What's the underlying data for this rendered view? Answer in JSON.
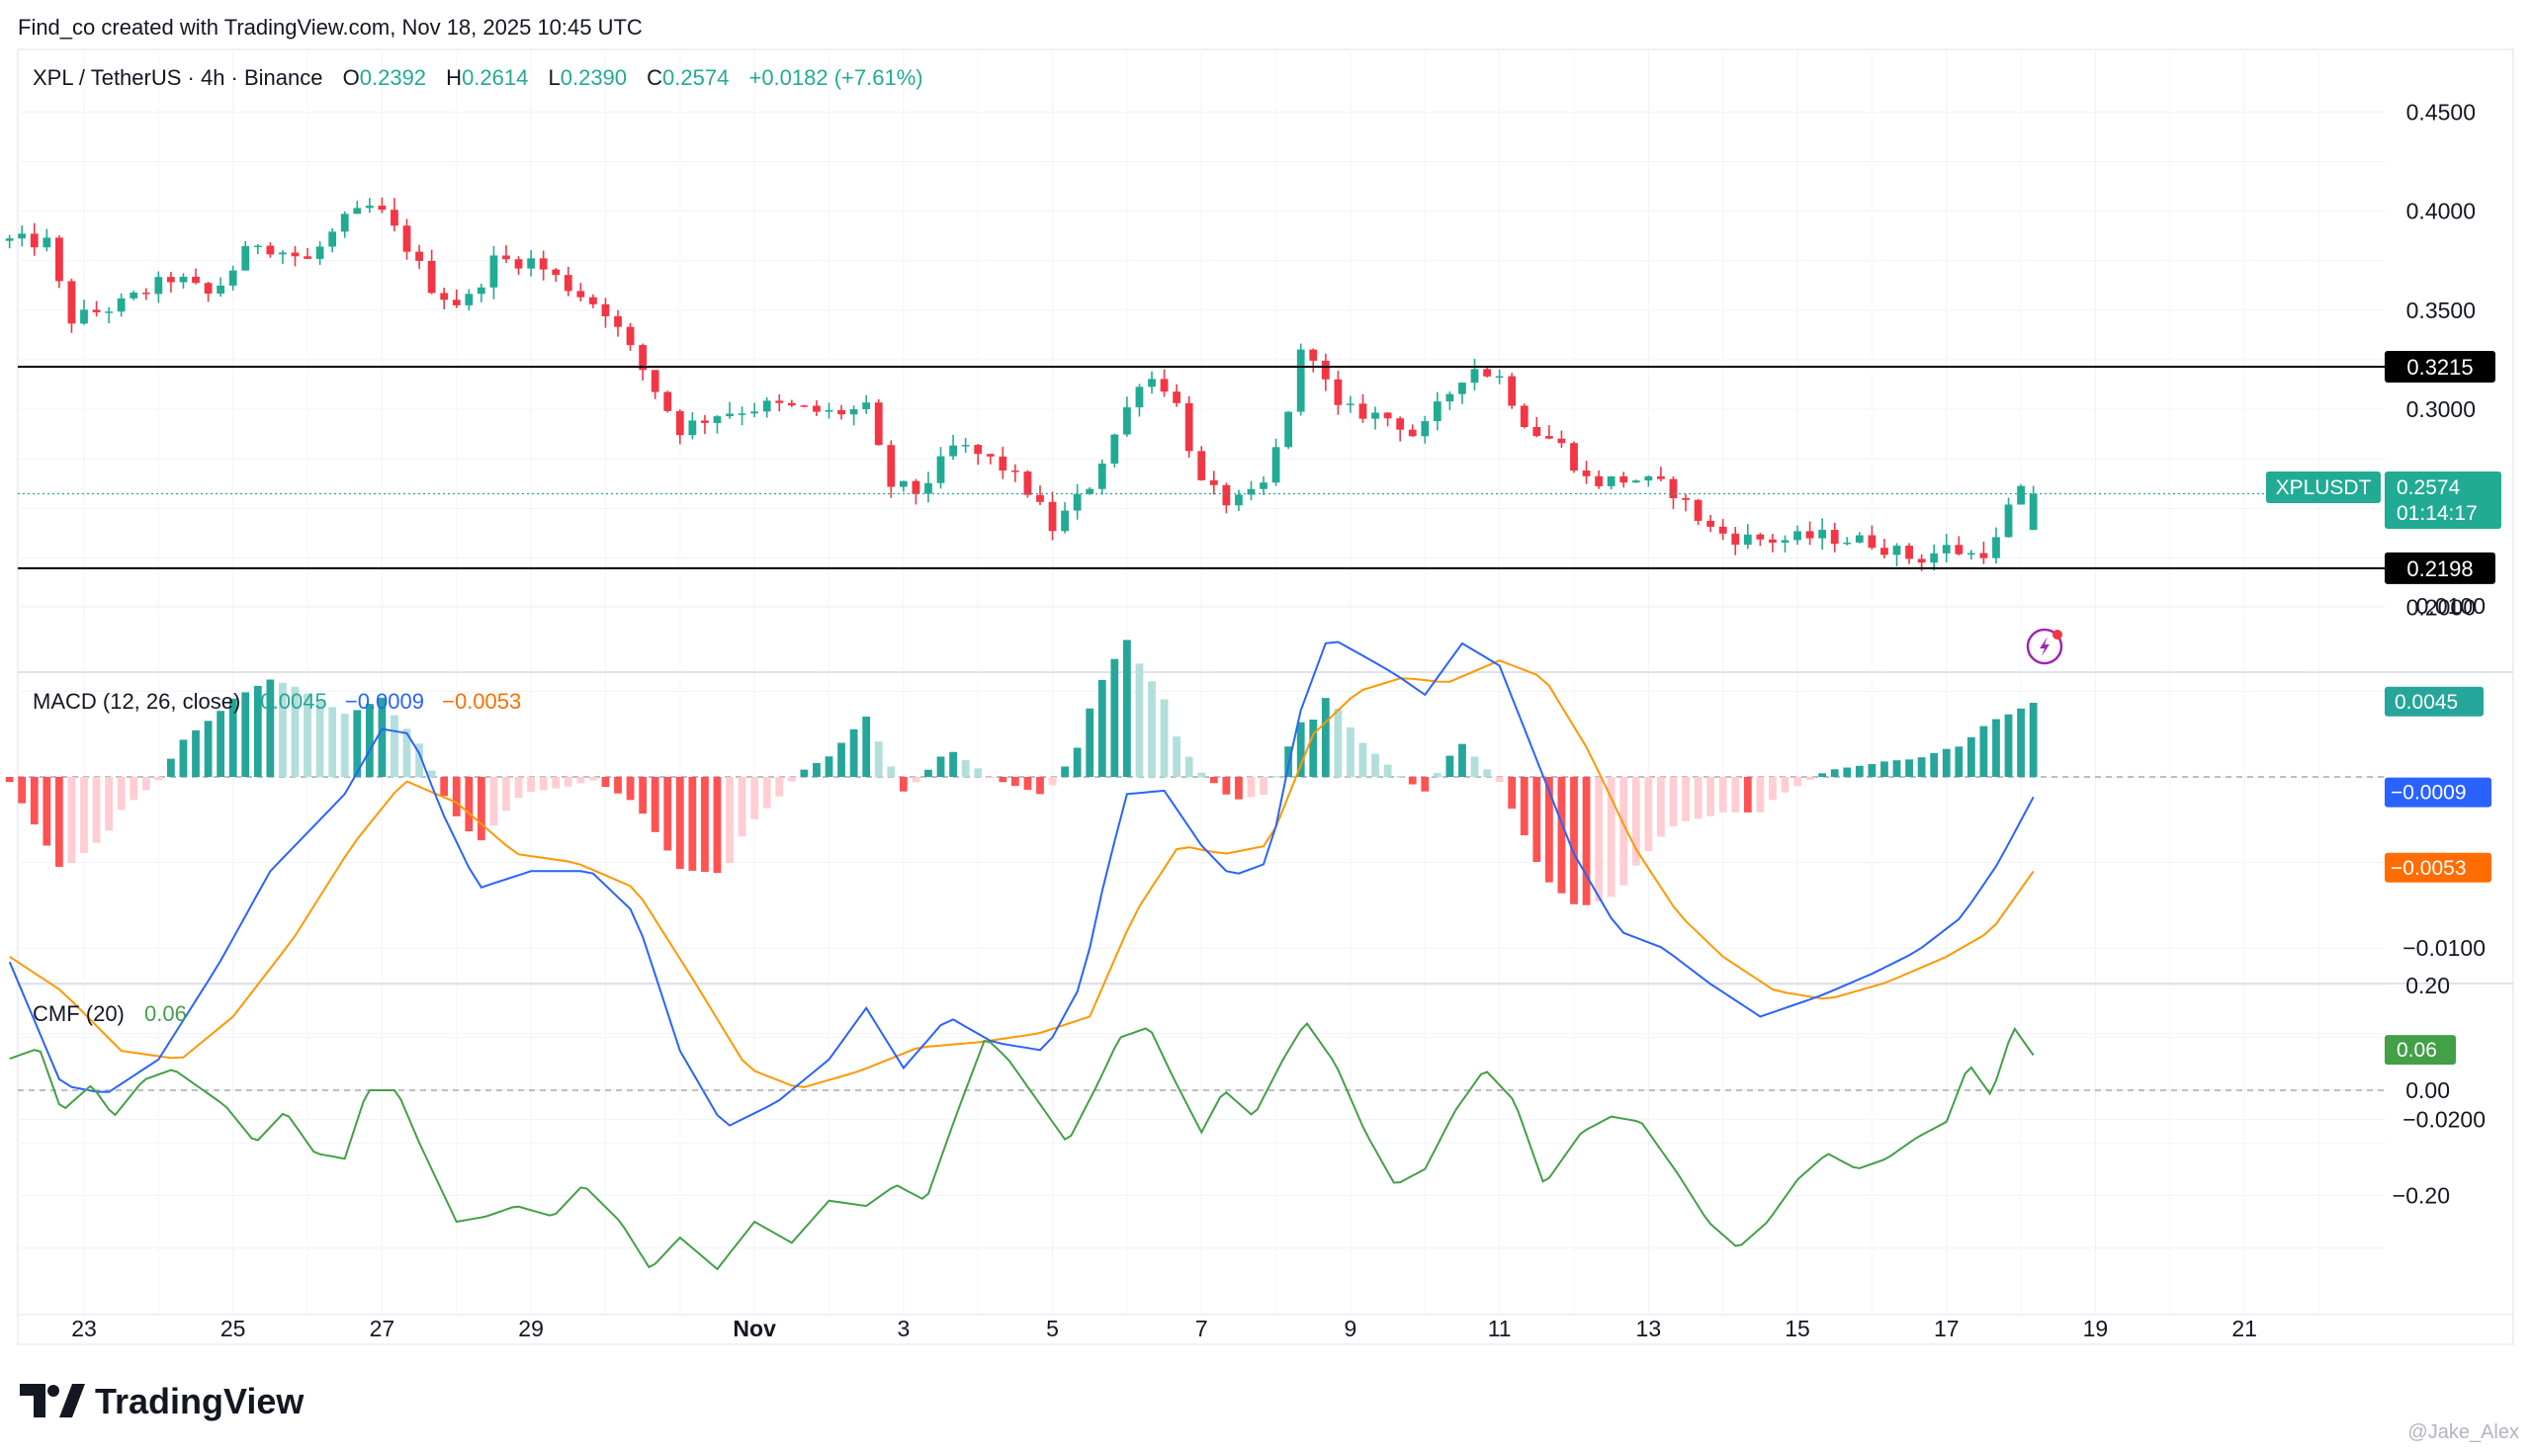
{
  "header": {
    "created_by": "Find_co created with TradingView.com, Nov 18, 2025 10:45 UTC"
  },
  "legend": {
    "symbol": "XPL / TetherUS · 4h · Binance",
    "o_label": "O",
    "o_value": "0.2392",
    "h_label": "H",
    "h_value": "0.2614",
    "l_label": "L",
    "l_value": "0.2390",
    "c_label": "C",
    "c_value": "0.2574",
    "change": "+0.0182 (+7.61%)"
  },
  "macd_legend": {
    "label": "MACD (12, 26, close)",
    "hist": "0.0045",
    "macd": "−0.0009",
    "signal": "−0.0053"
  },
  "cmf_legend": {
    "label": "CMF (20)",
    "value": "0.06"
  },
  "price_badges": {
    "resistance": "0.3215",
    "support": "0.2198",
    "symbol": "XPLUSDT",
    "last": "0.2574",
    "countdown": "01:14:17"
  },
  "macd_badges": {
    "hist": "0.0045",
    "macd": "−0.0009",
    "signal": "−0.0053"
  },
  "cmf_badge": "0.06",
  "footer": {
    "brand": "TradingView",
    "watermark": "@Jake_Alex"
  },
  "colors": {
    "up": "#22ab94",
    "down": "#f23645",
    "macd_line": "#2962ff",
    "signal_line": "#ff6d00",
    "hist_up_strong": "#26a69a",
    "hist_up_weak": "#b2dfdb",
    "hist_down_strong": "#ff5252",
    "hist_down_weak": "#ffcdd2",
    "cmf_line": "#43a047",
    "horizontal_line": "#000000"
  },
  "chart_data": [
    {
      "type": "candlestick",
      "title": "XPL / TetherUS · 4h · Binance",
      "ylim": [
        0.18,
        0.47
      ],
      "y_ticks": [
        "0.4500",
        "0.4000",
        "0.3500",
        "0.3000",
        "0.2000"
      ],
      "x_ticks": [
        "23",
        "25",
        "27",
        "29",
        "Nov",
        "3",
        "5",
        "7",
        "9",
        "11",
        "13",
        "15",
        "17",
        "19",
        "21"
      ],
      "x_tick_days": [
        23,
        25,
        27,
        29,
        32,
        34,
        36,
        38,
        40,
        42,
        44,
        46,
        48,
        50,
        52
      ],
      "x_unit_note": "days counted from Oct 1 2025 (Nov 1 = 32)",
      "horizontal_lines": [
        0.3215,
        0.2198
      ],
      "last_price": 0.2574,
      "anchors": [
        {
          "day": 22.0,
          "price": 0.385
        },
        {
          "day": 22.5,
          "price": 0.384
        },
        {
          "day": 22.8,
          "price": 0.345
        },
        {
          "day": 23.5,
          "price": 0.353
        },
        {
          "day": 24.2,
          "price": 0.367
        },
        {
          "day": 24.7,
          "price": 0.357
        },
        {
          "day": 25.3,
          "price": 0.385
        },
        {
          "day": 26.0,
          "price": 0.375
        },
        {
          "day": 26.5,
          "price": 0.395
        },
        {
          "day": 26.9,
          "price": 0.403
        },
        {
          "day": 27.3,
          "price": 0.384
        },
        {
          "day": 27.7,
          "price": 0.36
        },
        {
          "day": 28.1,
          "price": 0.352
        },
        {
          "day": 28.5,
          "price": 0.375
        },
        {
          "day": 29.0,
          "price": 0.375
        },
        {
          "day": 29.5,
          "price": 0.362
        },
        {
          "day": 30.0,
          "price": 0.35
        },
        {
          "day": 30.5,
          "price": 0.32
        },
        {
          "day": 31.0,
          "price": 0.29
        },
        {
          "day": 31.5,
          "price": 0.298
        },
        {
          "day": 32.2,
          "price": 0.302
        },
        {
          "day": 33.0,
          "price": 0.298
        },
        {
          "day": 33.5,
          "price": 0.3
        },
        {
          "day": 33.8,
          "price": 0.262
        },
        {
          "day": 34.2,
          "price": 0.258
        },
        {
          "day": 34.7,
          "price": 0.282
        },
        {
          "day": 35.3,
          "price": 0.272
        },
        {
          "day": 35.7,
          "price": 0.258
        },
        {
          "day": 36.0,
          "price": 0.24
        },
        {
          "day": 36.5,
          "price": 0.262
        },
        {
          "day": 37.0,
          "price": 0.3
        },
        {
          "day": 37.2,
          "price": 0.318
        },
        {
          "day": 37.6,
          "price": 0.31
        },
        {
          "day": 38.0,
          "price": 0.262
        },
        {
          "day": 38.4,
          "price": 0.252
        },
        {
          "day": 38.8,
          "price": 0.258
        },
        {
          "day": 39.1,
          "price": 0.29
        },
        {
          "day": 39.4,
          "price": 0.338
        },
        {
          "day": 39.8,
          "price": 0.3
        },
        {
          "day": 40.2,
          "price": 0.298
        },
        {
          "day": 40.6,
          "price": 0.295
        },
        {
          "day": 40.9,
          "price": 0.285
        },
        {
          "day": 41.2,
          "price": 0.302
        },
        {
          "day": 41.6,
          "price": 0.322
        },
        {
          "day": 42.0,
          "price": 0.316
        },
        {
          "day": 42.4,
          "price": 0.29
        },
        {
          "day": 42.8,
          "price": 0.283
        },
        {
          "day": 43.2,
          "price": 0.263
        },
        {
          "day": 43.8,
          "price": 0.265
        },
        {
          "day": 44.3,
          "price": 0.26
        },
        {
          "day": 44.8,
          "price": 0.24
        },
        {
          "day": 45.2,
          "price": 0.235
        },
        {
          "day": 45.8,
          "price": 0.234
        },
        {
          "day": 46.3,
          "price": 0.236
        },
        {
          "day": 47.0,
          "price": 0.233
        },
        {
          "day": 47.6,
          "price": 0.224
        },
        {
          "day": 48.0,
          "price": 0.23
        },
        {
          "day": 48.4,
          "price": 0.226
        },
        {
          "day": 48.7,
          "price": 0.234
        },
        {
          "day": 48.9,
          "price": 0.258
        },
        {
          "day": 49.2,
          "price": 0.2574
        }
      ],
      "notable_wicks": {
        "high": 0.352,
        "low": 0.2165
      }
    },
    {
      "type": "bar+line",
      "title": "MACD (12, 26, close)",
      "ylim": [
        -0.0245,
        0.0118
      ],
      "y_ticks": [
        "0.0100",
        "−0.0100",
        "−0.0200"
      ],
      "zero_line": true,
      "macd_anchors": [
        {
          "day": 22.0,
          "value": -0.0108
        },
        {
          "day": 22.7,
          "value": -0.018
        },
        {
          "day": 23.3,
          "value": -0.0185
        },
        {
          "day": 24.0,
          "value": -0.0165
        },
        {
          "day": 24.8,
          "value": -0.011
        },
        {
          "day": 25.5,
          "value": -0.0055
        },
        {
          "day": 26.5,
          "value": -0.001
        },
        {
          "day": 27.0,
          "value": 0.0028
        },
        {
          "day": 27.4,
          "value": 0.0025
        },
        {
          "day": 27.8,
          "value": -0.002
        },
        {
          "day": 28.3,
          "value": -0.0065
        },
        {
          "day": 29.0,
          "value": -0.0055
        },
        {
          "day": 29.8,
          "value": -0.0055
        },
        {
          "day": 30.4,
          "value": -0.008
        },
        {
          "day": 31.0,
          "value": -0.016
        },
        {
          "day": 31.6,
          "value": -0.0205
        },
        {
          "day": 32.3,
          "value": -0.019
        },
        {
          "day": 33.0,
          "value": -0.0165
        },
        {
          "day": 33.5,
          "value": -0.0135
        },
        {
          "day": 34.0,
          "value": -0.017
        },
        {
          "day": 34.6,
          "value": -0.014
        },
        {
          "day": 35.2,
          "value": -0.0155
        },
        {
          "day": 35.9,
          "value": -0.016
        },
        {
          "day": 36.4,
          "value": -0.012
        },
        {
          "day": 36.7,
          "value": -0.006
        },
        {
          "day": 37.0,
          "value": -0.001
        },
        {
          "day": 37.5,
          "value": -0.0008
        },
        {
          "day": 38.0,
          "value": -0.004
        },
        {
          "day": 38.4,
          "value": -0.0058
        },
        {
          "day": 38.9,
          "value": -0.005
        },
        {
          "day": 39.3,
          "value": 0.0035
        },
        {
          "day": 39.7,
          "value": 0.0082
        },
        {
          "day": 40.2,
          "value": 0.007
        },
        {
          "day": 40.6,
          "value": 0.006
        },
        {
          "day": 41.0,
          "value": 0.0048
        },
        {
          "day": 41.5,
          "value": 0.0078
        },
        {
          "day": 42.0,
          "value": 0.0065
        },
        {
          "day": 42.5,
          "value": 0.001
        },
        {
          "day": 43.0,
          "value": -0.0045
        },
        {
          "day": 43.6,
          "value": -0.009
        },
        {
          "day": 44.2,
          "value": -0.01
        },
        {
          "day": 44.8,
          "value": -0.012
        },
        {
          "day": 45.5,
          "value": -0.014
        },
        {
          "day": 46.3,
          "value": -0.0128
        },
        {
          "day": 47.0,
          "value": -0.0115
        },
        {
          "day": 47.6,
          "value": -0.0102
        },
        {
          "day": 48.2,
          "value": -0.0082
        },
        {
          "day": 48.7,
          "value": -0.005
        },
        {
          "day": 49.2,
          "value": -0.0009
        }
      ],
      "signal_anchors": [
        {
          "day": 22.0,
          "value": -0.0105
        },
        {
          "day": 22.7,
          "value": -0.0125
        },
        {
          "day": 23.5,
          "value": -0.016
        },
        {
          "day": 24.3,
          "value": -0.0165
        },
        {
          "day": 25.0,
          "value": -0.014
        },
        {
          "day": 25.8,
          "value": -0.0095
        },
        {
          "day": 26.6,
          "value": -0.004
        },
        {
          "day": 27.3,
          "value": -0.0002
        },
        {
          "day": 28.0,
          "value": -0.0015
        },
        {
          "day": 28.8,
          "value": -0.0045
        },
        {
          "day": 29.6,
          "value": -0.005
        },
        {
          "day": 30.4,
          "value": -0.0065
        },
        {
          "day": 31.2,
          "value": -0.012
        },
        {
          "day": 31.9,
          "value": -0.017
        },
        {
          "day": 32.6,
          "value": -0.0182
        },
        {
          "day": 33.4,
          "value": -0.0172
        },
        {
          "day": 34.2,
          "value": -0.0158
        },
        {
          "day": 35.0,
          "value": -0.0155
        },
        {
          "day": 35.8,
          "value": -0.015
        },
        {
          "day": 36.5,
          "value": -0.014
        },
        {
          "day": 37.1,
          "value": -0.008
        },
        {
          "day": 37.7,
          "value": -0.004
        },
        {
          "day": 38.3,
          "value": -0.0045
        },
        {
          "day": 38.9,
          "value": -0.004
        },
        {
          "day": 39.5,
          "value": 0.0025
        },
        {
          "day": 40.1,
          "value": 0.005
        },
        {
          "day": 40.7,
          "value": 0.0058
        },
        {
          "day": 41.3,
          "value": 0.0055
        },
        {
          "day": 42.0,
          "value": 0.0068
        },
        {
          "day": 42.6,
          "value": 0.0058
        },
        {
          "day": 43.2,
          "value": 0.0015
        },
        {
          "day": 43.8,
          "value": -0.004
        },
        {
          "day": 44.4,
          "value": -0.008
        },
        {
          "day": 45.0,
          "value": -0.0105
        },
        {
          "day": 45.7,
          "value": -0.0125
        },
        {
          "day": 46.4,
          "value": -0.013
        },
        {
          "day": 47.2,
          "value": -0.012
        },
        {
          "day": 48.0,
          "value": -0.0105
        },
        {
          "day": 48.6,
          "value": -0.009
        },
        {
          "day": 49.2,
          "value": -0.0053
        }
      ]
    },
    {
      "type": "line",
      "title": "CMF (20)",
      "ylim": [
        -0.42,
        0.21
      ],
      "y_ticks": [
        "0.20",
        "0.00",
        "−0.20"
      ],
      "zero_line": true,
      "anchors": [
        {
          "day": 22.0,
          "value": 0.06
        },
        {
          "day": 22.4,
          "value": 0.08
        },
        {
          "day": 22.7,
          "value": -0.04
        },
        {
          "day": 23.1,
          "value": 0.01
        },
        {
          "day": 23.4,
          "value": -0.05
        },
        {
          "day": 23.8,
          "value": 0.02
        },
        {
          "day": 24.2,
          "value": 0.04
        },
        {
          "day": 24.6,
          "value": 0.0
        },
        {
          "day": 24.9,
          "value": -0.03
        },
        {
          "day": 25.3,
          "value": -0.1
        },
        {
          "day": 25.7,
          "value": -0.04
        },
        {
          "day": 26.1,
          "value": -0.12
        },
        {
          "day": 26.5,
          "value": -0.13
        },
        {
          "day": 26.8,
          "value": 0.0
        },
        {
          "day": 27.2,
          "value": 0.0
        },
        {
          "day": 27.5,
          "value": -0.1
        },
        {
          "day": 28.0,
          "value": -0.25
        },
        {
          "day": 28.4,
          "value": -0.24
        },
        {
          "day": 28.8,
          "value": -0.22
        },
        {
          "day": 29.3,
          "value": -0.24
        },
        {
          "day": 29.7,
          "value": -0.18
        },
        {
          "day": 30.2,
          "value": -0.25
        },
        {
          "day": 30.6,
          "value": -0.34
        },
        {
          "day": 31.0,
          "value": -0.28
        },
        {
          "day": 31.5,
          "value": -0.34
        },
        {
          "day": 32.0,
          "value": -0.25
        },
        {
          "day": 32.5,
          "value": -0.29
        },
        {
          "day": 33.0,
          "value": -0.21
        },
        {
          "day": 33.5,
          "value": -0.22
        },
        {
          "day": 33.9,
          "value": -0.18
        },
        {
          "day": 34.3,
          "value": -0.21
        },
        {
          "day": 34.7,
          "value": -0.05
        },
        {
          "day": 35.1,
          "value": 0.1
        },
        {
          "day": 35.4,
          "value": 0.06
        },
        {
          "day": 35.8,
          "value": -0.02
        },
        {
          "day": 36.2,
          "value": -0.1
        },
        {
          "day": 36.6,
          "value": 0.01
        },
        {
          "day": 36.9,
          "value": 0.1
        },
        {
          "day": 37.3,
          "value": 0.12
        },
        {
          "day": 37.6,
          "value": 0.03
        },
        {
          "day": 38.0,
          "value": -0.08
        },
        {
          "day": 38.3,
          "value": 0.0
        },
        {
          "day": 38.7,
          "value": -0.05
        },
        {
          "day": 39.1,
          "value": 0.06
        },
        {
          "day": 39.4,
          "value": 0.13
        },
        {
          "day": 39.8,
          "value": 0.05
        },
        {
          "day": 40.2,
          "value": -0.08
        },
        {
          "day": 40.6,
          "value": -0.18
        },
        {
          "day": 41.0,
          "value": -0.15
        },
        {
          "day": 41.4,
          "value": -0.04
        },
        {
          "day": 41.8,
          "value": 0.04
        },
        {
          "day": 42.2,
          "value": -0.02
        },
        {
          "day": 42.6,
          "value": -0.18
        },
        {
          "day": 43.1,
          "value": -0.08
        },
        {
          "day": 43.5,
          "value": -0.05
        },
        {
          "day": 43.9,
          "value": -0.06
        },
        {
          "day": 44.4,
          "value": -0.16
        },
        {
          "day": 44.8,
          "value": -0.25
        },
        {
          "day": 45.2,
          "value": -0.3
        },
        {
          "day": 45.6,
          "value": -0.25
        },
        {
          "day": 46.0,
          "value": -0.17
        },
        {
          "day": 46.4,
          "value": -0.12
        },
        {
          "day": 46.8,
          "value": -0.15
        },
        {
          "day": 47.2,
          "value": -0.13
        },
        {
          "day": 47.6,
          "value": -0.09
        },
        {
          "day": 48.0,
          "value": -0.06
        },
        {
          "day": 48.3,
          "value": 0.05
        },
        {
          "day": 48.6,
          "value": -0.01
        },
        {
          "day": 48.9,
          "value": 0.12
        },
        {
          "day": 49.2,
          "value": 0.06
        }
      ]
    }
  ]
}
